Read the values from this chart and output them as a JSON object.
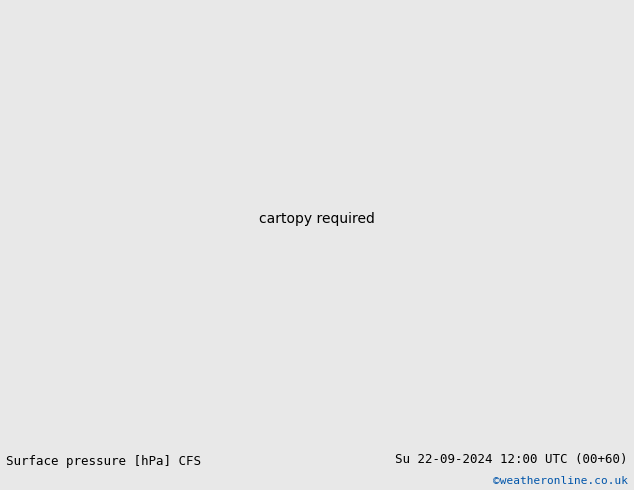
{
  "title_left": "Surface pressure [hPa] CFS",
  "title_right": "Su 22-09-2024 12:00 UTC (00+60)",
  "credit": "©weatheronline.co.uk",
  "credit_color": "#0055aa",
  "bg_map_color": "#d8d8d8",
  "land_color": "#c8e8b0",
  "ocean_color": "#d0d8e0",
  "gray_land_color": "#b0b0b0",
  "bottom_bar_color": "#e8e8e8",
  "text_color": "#000000",
  "font_size_label": 9,
  "font_size_credit": 8,
  "red": "#cc0000",
  "blue": "#0000cc",
  "black": "#000000",
  "figure_width": 6.34,
  "figure_height": 4.9,
  "dpi": 100,
  "lon_min": -45,
  "lon_max": 60,
  "lat_min": 25,
  "lat_max": 75
}
